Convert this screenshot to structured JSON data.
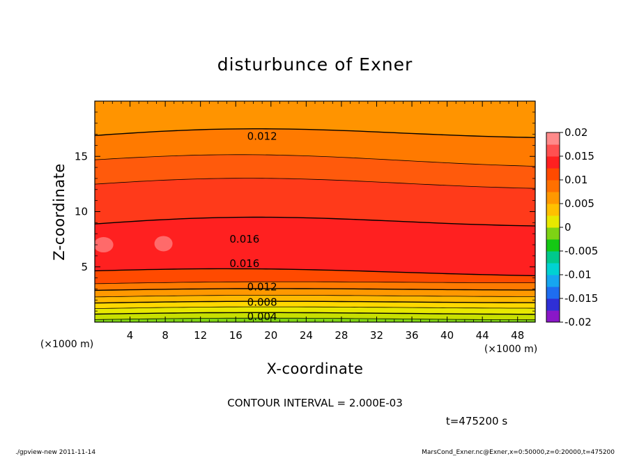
{
  "chart_data": {
    "type": "heatmap",
    "title": "disturbunce of Exner",
    "xlabel": "X-coordinate",
    "ylabel": "Z-coordinate",
    "x_unit": "(×1000 m)",
    "y_unit": "(×1000 m)",
    "xlim": [
      0,
      50
    ],
    "ylim": [
      0,
      20
    ],
    "x_ticks": [
      4,
      8,
      12,
      16,
      20,
      24,
      28,
      32,
      36,
      40,
      44,
      48
    ],
    "y_ticks": [
      5,
      10,
      15
    ],
    "colorbar": {
      "min": -0.02,
      "max": 0.02,
      "tick_labels": [
        "0.02",
        "0.015",
        "0.01",
        "0.005",
        "0",
        "-0.005",
        "-0.01",
        "-0.015",
        "-0.02"
      ],
      "tick_values": [
        0.02,
        0.015,
        0.01,
        0.005,
        0,
        -0.005,
        -0.01,
        -0.015,
        -0.02
      ],
      "colors": [
        "#8a17c8",
        "#2f2fd6",
        "#1e6df0",
        "#16a6f0",
        "#00d2d2",
        "#00c98c",
        "#14c814",
        "#7ed314",
        "#e8e800",
        "#ffc000",
        "#ff9800",
        "#ff7000",
        "#ff4a00",
        "#ff2020",
        "#ff5050",
        "#ff8a8a"
      ]
    },
    "contour_interval": "2.000E-03",
    "contour_labels": [
      {
        "text": "0.012",
        "x": 19,
        "z": 16.8
      },
      {
        "text": "0.016",
        "x": 17,
        "z": 7.5
      },
      {
        "text": "0.016",
        "x": 17,
        "z": 5.3
      },
      {
        "text": "0.012",
        "x": 19,
        "z": 3.2
      },
      {
        "text": "0.008",
        "x": 19,
        "z": 1.8
      },
      {
        "text": "0.004",
        "x": 19,
        "z": 0.5
      }
    ],
    "bands": [
      {
        "value": 0.001,
        "color": "#7ed314",
        "z_left": 0.25,
        "z_right": 0.25
      },
      {
        "value": 0.003,
        "color": "#c8e000",
        "z_left": 0.75,
        "z_right": 0.75
      },
      {
        "value": 0.005,
        "color": "#e8e800",
        "z_left": 1.25,
        "z_right": 1.3
      },
      {
        "value": 0.007,
        "color": "#ffd800",
        "z_left": 1.75,
        "z_right": 1.8
      },
      {
        "value": 0.009,
        "color": "#ffb800",
        "z_left": 2.3,
        "z_right": 2.35
      },
      {
        "value": 0.011,
        "color": "#ff9800",
        "z_left": 2.9,
        "z_right": 2.95
      },
      {
        "value": 0.013,
        "color": "#ff7a00",
        "z_left": 3.5,
        "z_right": 3.6
      },
      {
        "value": 0.015,
        "color": "#ff4a00",
        "z_left": 4.7,
        "z_right": 4.3
      },
      {
        "value": 0.017,
        "color": "#ff2020",
        "z_left": 9.0,
        "z_right": 8.9
      },
      {
        "value": 0.015,
        "color": "#ff3a1a",
        "z_left": 12.6,
        "z_right": 12.3
      },
      {
        "value": 0.013,
        "color": "#ff5a0c",
        "z_left": 14.8,
        "z_right": 14.3
      },
      {
        "value": 0.011,
        "color": "#ff7a00",
        "z_left": 17.0,
        "z_right": 16.9
      },
      {
        "value": 0.009,
        "color": "#ff9400",
        "z_left": 20.0,
        "z_right": 20.0
      }
    ]
  },
  "time_label": "t=475200 s",
  "footer_left": "./gpview-new   2011-11-14",
  "footer_right": "MarsCond_Exner.nc@Exner,x=0:50000,z=0:20000,t=475200"
}
